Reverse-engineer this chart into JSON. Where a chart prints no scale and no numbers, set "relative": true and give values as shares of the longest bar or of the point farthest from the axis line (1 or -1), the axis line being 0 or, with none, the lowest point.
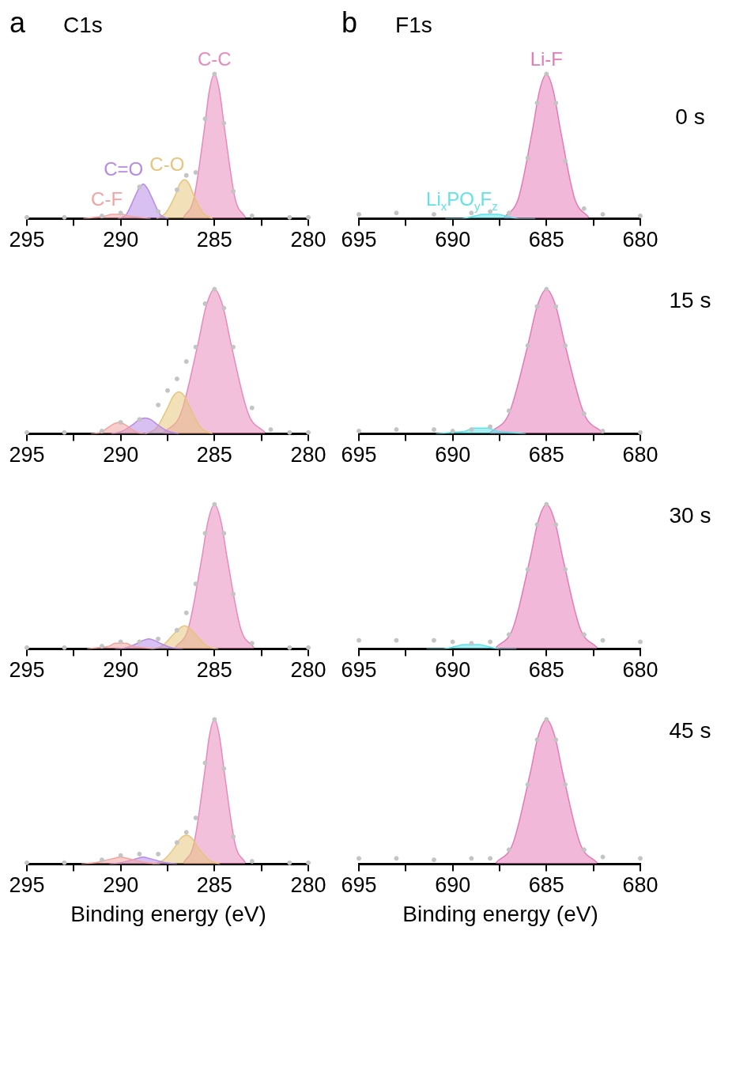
{
  "chart_data": [
    {
      "type": "area",
      "title": "C1s",
      "annotations": [
        "a"
      ],
      "relative": true,
      "xlim": [
        295,
        280
      ],
      "xticks": [
        295,
        {
          "value": 292.5,
          "label": null
        },
        290,
        {
          "value": 287.5,
          "label": null
        },
        285,
        {
          "value": 282.5,
          "label": null
        },
        280
      ],
      "grid": false,
      "legend": false,
      "series": [
        {
          "name": "C-C",
          "color": "#e889bd",
          "x": [
            283.35,
            283.9,
            284.45,
            284.73,
            285,
            285.28,
            285.55,
            286.1,
            286.65
          ],
          "values": [
            0.01,
            0.14,
            0.61,
            0.88,
            1,
            0.88,
            0.61,
            0.14,
            0.01
          ]
        },
        {
          "name": "C-O",
          "color": "#e6c47a",
          "x": [
            285.1,
            285.6,
            286.1,
            286.35,
            286.6,
            286.85,
            287.1,
            287.6,
            288.1
          ],
          "values": [
            0,
            0.04,
            0.16,
            0.24,
            0.27,
            0.24,
            0.16,
            0.04,
            0
          ]
        },
        {
          "name": "C=O",
          "color": "#b68ae6",
          "x": [
            287.45,
            287.9,
            288.35,
            288.58,
            288.8,
            289.03,
            289.25,
            289.7,
            290.15
          ],
          "values": [
            0,
            0.03,
            0.15,
            0.21,
            0.24,
            0.21,
            0.15,
            0.03,
            0
          ]
        },
        {
          "name": "C-F",
          "color": "#f2a3a0",
          "x": [
            288.4,
            289,
            289.6,
            289.9,
            290.2,
            290.5,
            290.8,
            291.4,
            292
          ],
          "values": [
            0,
            0.01,
            0.02,
            0.03,
            0.03,
            0.03,
            0.02,
            0.01,
            0
          ]
        },
        {
          "type": "scatter",
          "marker": "circle",
          "color": "#c4c4c4",
          "x": [
            295,
            293,
            291,
            290,
            289,
            288,
            287,
            286.5,
            286,
            285.5,
            285,
            284.5,
            284,
            283,
            281,
            280
          ],
          "values": [
            0.01,
            0.01,
            0.02,
            0.04,
            0.22,
            0.05,
            0.2,
            0.3,
            0.32,
            0.69,
            1,
            0.66,
            0.19,
            0.02,
            0.01,
            0.01
          ]
        }
      ]
    },
    {
      "type": "area",
      "title": "F1s",
      "annotations": [
        "b",
        "0 s"
      ],
      "relative": true,
      "xlim": [
        695,
        680
      ],
      "xticks": [
        695,
        {
          "value": 692.5,
          "label": null
        },
        690,
        {
          "value": 687.5,
          "label": null
        },
        685,
        {
          "value": 682.5,
          "label": null
        },
        680
      ],
      "grid": false,
      "legend": false,
      "series": [
        {
          "name": "Li-F",
          "color": "#e47ab8",
          "x": [
            682.75,
            683.5,
            684.25,
            684.63,
            685,
            685.38,
            685.75,
            686.5,
            687.25
          ],
          "values": [
            0.01,
            0.14,
            0.61,
            0.88,
            1,
            0.88,
            0.61,
            0.14,
            0.01
          ]
        },
        {
          "name": "Li$_{x}$PO$_{y}$F$_{z}$",
          "color": "#5ee3e8",
          "x": [
            685.6,
            686.4,
            687.2,
            687.6,
            688,
            688.4,
            688.8,
            689.6,
            690.4
          ],
          "values": [
            0,
            0,
            0.02,
            0.03,
            0.03,
            0.03,
            0.02,
            0,
            0
          ]
        },
        {
          "type": "scatter",
          "marker": "circle",
          "color": "#c4c4c4",
          "x": [
            695,
            693,
            691,
            689,
            688,
            687,
            686,
            685.5,
            685,
            684.5,
            684,
            683,
            682,
            680
          ],
          "values": [
            0.03,
            0.04,
            0.03,
            0.04,
            0.05,
            0.04,
            0.42,
            0.8,
            1,
            0.8,
            0.4,
            0.07,
            0.03,
            0.02
          ]
        }
      ]
    },
    {
      "type": "area",
      "relative": true,
      "xlim": [
        295,
        280
      ],
      "xticks": [
        295,
        {
          "value": 292.5,
          "label": null
        },
        290,
        {
          "value": 287.5,
          "label": null
        },
        285,
        {
          "value": 282.5,
          "label": null
        },
        280
      ],
      "grid": false,
      "legend": false,
      "series": [
        {
          "color": "#e889bd",
          "x": [
            282.3,
            283.2,
            284.1,
            284.55,
            285,
            285.45,
            285.9,
            286.8,
            287.7
          ],
          "values": [
            0.01,
            0.14,
            0.61,
            0.88,
            1,
            0.88,
            0.61,
            0.14,
            0.01
          ]
        },
        {
          "color": "#e6c47a",
          "x": [
            285.1,
            285.7,
            286.3,
            286.6,
            286.9,
            287.2,
            287.5,
            288.1,
            288.7
          ],
          "values": [
            0,
            0.04,
            0.18,
            0.26,
            0.29,
            0.26,
            0.18,
            0.04,
            0
          ]
        },
        {
          "color": "#b68ae6",
          "x": [
            286.9,
            287.5,
            288.1,
            288.4,
            288.7,
            289,
            289.3,
            289.9,
            290.5
          ],
          "values": [
            0,
            0.02,
            0.07,
            0.1,
            0.11,
            0.1,
            0.07,
            0.02,
            0
          ]
        },
        {
          "color": "#f2a3a0",
          "x": [
            288.6,
            289.1,
            289.6,
            289.85,
            290.1,
            290.35,
            290.6,
            291.1,
            291.6
          ],
          "values": [
            0,
            0.01,
            0.05,
            0.07,
            0.08,
            0.07,
            0.05,
            0.01,
            0
          ]
        },
        {
          "type": "scatter",
          "marker": "circle",
          "color": "#c4c4c4",
          "x": [
            295,
            293,
            291,
            290,
            289,
            288,
            287.5,
            287,
            286.5,
            286,
            285.5,
            285,
            284.5,
            284,
            283,
            282,
            281,
            280
          ],
          "values": [
            0.01,
            0.01,
            0.02,
            0.08,
            0.1,
            0.2,
            0.3,
            0.38,
            0.5,
            0.6,
            0.9,
            1,
            0.87,
            0.6,
            0.18,
            0.03,
            0.01,
            0.01
          ]
        }
      ]
    },
    {
      "type": "area",
      "annotations": [
        "15 s"
      ],
      "relative": true,
      "xlim": [
        695,
        680
      ],
      "xticks": [
        695,
        {
          "value": 692.5,
          "label": null
        },
        690,
        {
          "value": 687.5,
          "label": null
        },
        685,
        {
          "value": 682.5,
          "label": null
        },
        680
      ],
      "grid": false,
      "legend": false,
      "series": [
        {
          "color": "#e47ab8",
          "x": [
            682,
            683,
            684,
            684.5,
            685,
            685.5,
            686,
            687,
            688
          ],
          "values": [
            0.01,
            0.14,
            0.61,
            0.88,
            1,
            0.88,
            0.61,
            0.14,
            0.01
          ]
        },
        {
          "color": "#5ee3e8",
          "x": [
            686.1,
            686.9,
            687.7,
            688.1,
            688.5,
            688.9,
            689.3,
            690.1,
            690.9
          ],
          "values": [
            0,
            0.01,
            0.02,
            0.04,
            0.04,
            0.04,
            0.02,
            0.01,
            0
          ]
        },
        {
          "type": "scatter",
          "marker": "circle",
          "color": "#c4c4c4",
          "x": [
            695,
            693,
            691,
            690,
            689,
            688,
            687,
            686,
            685.5,
            685,
            684.5,
            684,
            683,
            682,
            680
          ],
          "values": [
            0.02,
            0.03,
            0.03,
            0.02,
            0.03,
            0.05,
            0.16,
            0.61,
            0.88,
            1,
            0.88,
            0.61,
            0.14,
            0.02,
            0.01
          ]
        }
      ]
    },
    {
      "type": "area",
      "relative": true,
      "xlim": [
        295,
        280
      ],
      "xticks": [
        295,
        {
          "value": 292.5,
          "label": null
        },
        290,
        {
          "value": 287.5,
          "label": null
        },
        285,
        {
          "value": 282.5,
          "label": null
        },
        280
      ],
      "grid": false,
      "legend": false,
      "series": [
        {
          "color": "#e889bd",
          "x": [
            282.9,
            283.6,
            284.3,
            284.65,
            285,
            285.35,
            285.7,
            286.4,
            287.1
          ],
          "values": [
            0.01,
            0.14,
            0.61,
            0.88,
            1,
            0.88,
            0.61,
            0.14,
            0.01
          ]
        },
        {
          "color": "#e6c47a",
          "x": [
            284.8,
            285.4,
            286,
            286.3,
            286.6,
            286.9,
            287.2,
            287.8,
            288.4
          ],
          "values": [
            0,
            0.02,
            0.1,
            0.14,
            0.16,
            0.14,
            0.1,
            0.02,
            0
          ]
        },
        {
          "color": "#b68ae6",
          "x": [
            286.7,
            287.3,
            287.9,
            288.2,
            288.5,
            288.8,
            289.1,
            289.7,
            290.3
          ],
          "values": [
            0,
            0.01,
            0.04,
            0.06,
            0.07,
            0.06,
            0.04,
            0.01,
            0
          ]
        },
        {
          "color": "#f2a3a0",
          "x": [
            288.2,
            288.8,
            289.4,
            289.7,
            290,
            290.3,
            290.6,
            291.2,
            291.8
          ],
          "values": [
            0,
            0.01,
            0.02,
            0.04,
            0.04,
            0.04,
            0.02,
            0.01,
            0
          ]
        },
        {
          "type": "scatter",
          "marker": "circle",
          "color": "#c4c4c4",
          "x": [
            295,
            293,
            291,
            290,
            289,
            288,
            287,
            286.5,
            286,
            285.5,
            285,
            284.5,
            284,
            283,
            281,
            280
          ],
          "values": [
            0.01,
            0.01,
            0.02,
            0.05,
            0.05,
            0.07,
            0.13,
            0.25,
            0.45,
            0.8,
            1,
            0.8,
            0.38,
            0.04,
            0.01,
            0.01
          ]
        }
      ]
    },
    {
      "type": "area",
      "annotations": [
        "30 s"
      ],
      "relative": true,
      "xlim": [
        695,
        680
      ],
      "xticks": [
        695,
        {
          "value": 692.5,
          "label": null
        },
        690,
        {
          "value": 687.5,
          "label": null
        },
        685,
        {
          "value": 682.5,
          "label": null
        },
        680
      ],
      "grid": false,
      "legend": false,
      "series": [
        {
          "color": "#e47ab8",
          "x": [
            682.3,
            683.2,
            684.1,
            684.55,
            685,
            685.45,
            685.9,
            686.8,
            687.7
          ],
          "values": [
            0.01,
            0.14,
            0.61,
            0.88,
            1,
            0.88,
            0.61,
            0.14,
            0.01
          ]
        },
        {
          "color": "#5ee3e8",
          "x": [
            686.6,
            687.4,
            688.2,
            688.6,
            689,
            689.4,
            689.8,
            690.6,
            691.4
          ],
          "values": [
            0,
            0,
            0.02,
            0.03,
            0.03,
            0.03,
            0.02,
            0,
            0
          ]
        },
        {
          "type": "scatter",
          "marker": "circle",
          "color": "#c4c4c4",
          "x": [
            695,
            693,
            691,
            690,
            689,
            688,
            687,
            686,
            685.5,
            685,
            684.5,
            684,
            683,
            682,
            680
          ],
          "values": [
            0.06,
            0.06,
            0.06,
            0.05,
            0.04,
            0.05,
            0.1,
            0.55,
            0.86,
            1,
            0.86,
            0.55,
            0.1,
            0.06,
            0.05
          ]
        }
      ]
    },
    {
      "type": "area",
      "xlabel": "Binding energy (eV)",
      "relative": true,
      "xlim": [
        295,
        280
      ],
      "xticks": [
        295,
        {
          "value": 292.5,
          "label": null
        },
        290,
        {
          "value": 287.5,
          "label": null
        },
        285,
        {
          "value": 282.5,
          "label": null
        },
        280
      ],
      "grid": false,
      "legend": false,
      "series": [
        {
          "color": "#e889bd",
          "x": [
            283.35,
            283.9,
            284.45,
            284.73,
            285,
            285.28,
            285.55,
            286.1,
            286.65
          ],
          "values": [
            0.01,
            0.14,
            0.61,
            0.88,
            1,
            0.88,
            0.61,
            0.14,
            0.01
          ]
        },
        {
          "color": "#e6c47a",
          "x": [
            284.7,
            285.3,
            285.9,
            286.2,
            286.5,
            286.8,
            287.1,
            287.7,
            288.3
          ],
          "values": [
            0,
            0.03,
            0.12,
            0.18,
            0.2,
            0.18,
            0.12,
            0.03,
            0
          ]
        },
        {
          "color": "#b68ae6",
          "x": [
            287,
            287.6,
            288.2,
            288.5,
            288.8,
            289.1,
            289.4,
            290,
            290.6
          ],
          "values": [
            0,
            0.01,
            0.03,
            0.04,
            0.05,
            0.04,
            0.03,
            0.01,
            0
          ]
        },
        {
          "color": "#f2a3a0",
          "x": [
            287.9,
            288.6,
            289.3,
            289.65,
            290,
            290.35,
            290.7,
            291.4,
            292.1
          ],
          "values": [
            0,
            0.01,
            0.03,
            0.04,
            0.05,
            0.04,
            0.03,
            0.01,
            0
          ]
        },
        {
          "type": "scatter",
          "marker": "circle",
          "color": "#c4c4c4",
          "x": [
            295,
            293,
            291,
            290,
            289,
            288,
            287,
            286.5,
            286,
            285.5,
            285,
            284.5,
            284,
            283,
            281,
            280
          ],
          "values": [
            0.01,
            0.01,
            0.03,
            0.06,
            0.07,
            0.07,
            0.15,
            0.22,
            0.32,
            0.7,
            1,
            0.66,
            0.19,
            0.02,
            0.01,
            0.01
          ]
        }
      ]
    },
    {
      "type": "area",
      "xlabel": "Binding energy (eV)",
      "annotations": [
        "45 s"
      ],
      "relative": true,
      "xlim": [
        695,
        680
      ],
      "xticks": [
        695,
        {
          "value": 692.5,
          "label": null
        },
        690,
        {
          "value": 687.5,
          "label": null
        },
        685,
        {
          "value": 682.5,
          "label": null
        },
        680
      ],
      "grid": false,
      "legend": false,
      "series": [
        {
          "color": "#e47ab8",
          "x": [
            682.3,
            683.2,
            684.1,
            684.55,
            685,
            685.45,
            685.9,
            686.8,
            687.7
          ],
          "values": [
            0.01,
            0.14,
            0.61,
            0.88,
            1,
            0.88,
            0.61,
            0.14,
            0.01
          ]
        },
        {
          "type": "scatter",
          "marker": "circle",
          "color": "#c4c4c4",
          "x": [
            695,
            693,
            691,
            689,
            688,
            687,
            686,
            685.5,
            685,
            684.5,
            684,
            683,
            682,
            680
          ],
          "values": [
            0.04,
            0.04,
            0.03,
            0.04,
            0.04,
            0.1,
            0.55,
            0.86,
            1,
            0.86,
            0.55,
            0.1,
            0.05,
            0.04
          ]
        }
      ]
    }
  ]
}
